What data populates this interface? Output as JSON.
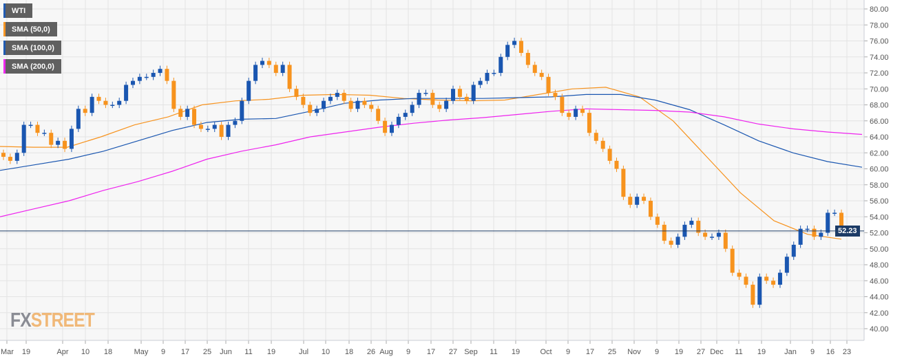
{
  "chart_data": {
    "type": "candlestick",
    "title": "WTI",
    "ylim": [
      40,
      80
    ],
    "y_ticks": [
      "80.00",
      "78.00",
      "76.00",
      "74.00",
      "72.00",
      "70.00",
      "68.00",
      "66.00",
      "64.00",
      "62.00",
      "60.00",
      "58.00",
      "56.00",
      "54.00",
      "52.00",
      "50.00",
      "48.00",
      "46.00",
      "44.00",
      "42.00",
      "40.00"
    ],
    "x_ticks": [
      "Mar",
      "19",
      "Apr",
      "10",
      "18",
      "May",
      "9",
      "17",
      "25",
      "Jun",
      "11",
      "19",
      "Jul",
      "10",
      "18",
      "26",
      "Aug",
      "9",
      "17",
      "27",
      "Sep",
      "11",
      "19",
      "Oct",
      "9",
      "17",
      "25",
      "Nov",
      "9",
      "19",
      "27",
      "Dec",
      "11",
      "19",
      "Jan",
      "9",
      "16",
      "23"
    ],
    "current_price": 52.23,
    "current_price_label": "52.23",
    "closes": [
      61.5,
      61,
      62,
      65.5,
      65.5,
      64.5,
      64.5,
      63,
      63.5,
      62.5,
      65,
      67.5,
      67,
      69,
      68.5,
      68,
      68,
      68.5,
      70.5,
      71,
      71.5,
      71.5,
      72,
      72.5,
      71,
      67.5,
      66.5,
      67.5,
      65.5,
      65,
      65,
      65.5,
      64,
      65.5,
      66,
      68.5,
      71,
      73,
      73.5,
      73,
      72,
      73,
      70,
      69,
      68,
      67,
      67.5,
      68.5,
      69,
      69.5,
      68.5,
      67.5,
      68.5,
      68,
      67.5,
      66,
      64.5,
      65.5,
      66.5,
      67,
      68,
      69.5,
      69.5,
      68,
      67.5,
      68.5,
      70,
      69,
      68.5,
      70.5,
      71,
      72,
      72,
      74,
      75.5,
      76,
      74.5,
      73,
      72,
      71.5,
      69.5,
      69,
      67,
      66.5,
      67.5,
      67,
      64.5,
      63.5,
      62.5,
      61,
      60,
      56.5,
      55.5,
      56.5,
      56,
      54,
      53,
      51,
      50.5,
      51.5,
      53,
      53.5,
      52,
      51.5,
      51.5,
      52,
      50,
      47,
      46.5,
      45.5,
      43,
      46.5,
      46,
      45.5,
      47,
      49,
      50.5,
      52.5,
      52.5,
      51.5,
      52,
      54.5,
      54.5,
      52.2
    ],
    "series": [
      {
        "name": "SMA (50,0)",
        "color": "#f7931e",
        "values": [
          62.8,
          62.7,
          62.7,
          64,
          65.5,
          66.5,
          68,
          68.5,
          68.7,
          69.2,
          69.3,
          69.2,
          68.8,
          68.6,
          68.5,
          68.6,
          69.3,
          70,
          70.2,
          69,
          66,
          61.5,
          57,
          53.5,
          51.8,
          51.2
        ]
      },
      {
        "name": "SMA (100,0)",
        "color": "#1a56b0",
        "values": [
          59.8,
          60.5,
          61.2,
          62.2,
          63.5,
          64.8,
          65.8,
          66.2,
          66.3,
          67.2,
          68.2,
          68.6,
          68.8,
          68.8,
          68.8,
          68.9,
          69,
          69.3,
          69.3,
          68.6,
          67.4,
          65.5,
          63.5,
          62,
          60.9,
          60.2
        ]
      },
      {
        "name": "SMA (200,0)",
        "color": "#ee22ee",
        "values": [
          54,
          55,
          56,
          57.3,
          58.4,
          59.7,
          61.2,
          62.2,
          63,
          64,
          64.6,
          65.2,
          65.7,
          66.1,
          66.4,
          66.8,
          67.2,
          67.5,
          67.4,
          67.3,
          67.1,
          66.5,
          65.6,
          65,
          64.6,
          64.3
        ]
      }
    ],
    "legend": [
      {
        "label": "WTI",
        "color": "#1a56b0"
      },
      {
        "label": "SMA (50,0)",
        "color": "#f7931e"
      },
      {
        "label": "SMA (100,0)",
        "color": "#1a56b0"
      },
      {
        "label": "SMA (200,0)",
        "color": "#ee22ee"
      }
    ],
    "up_color": "#1a56b0",
    "down_color": "#f7931e"
  },
  "watermark": {
    "fx": "FX",
    "street": "STREET"
  }
}
